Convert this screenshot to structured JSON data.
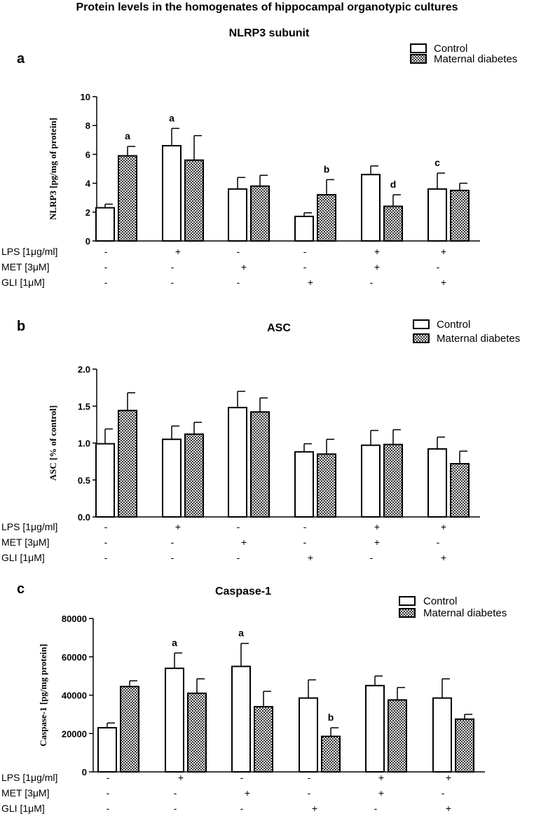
{
  "figure": {
    "title": "Protein levels in the homogenates of hippocampal organotypic cultures"
  },
  "legend": {
    "control": "Control",
    "maternal": "Maternal diabetes"
  },
  "colors": {
    "control_fill": "#ffffff",
    "maternal_fill": "#6a6a6a",
    "stroke": "#000000"
  },
  "treatments": {
    "rows": [
      {
        "label": "LPS [1μg/ml]",
        "marks": [
          "-",
          "+",
          "-",
          "-",
          "+",
          "+"
        ]
      },
      {
        "label": "MET [3μM]",
        "marks": [
          "-",
          "-",
          "+",
          "-",
          "+",
          "-"
        ]
      },
      {
        "label": "GLI [1μM]",
        "marks": [
          "-",
          "-",
          "-",
          "+",
          "-",
          "+"
        ]
      }
    ]
  },
  "chart_data": [
    {
      "type": "bar",
      "panel": "a",
      "title": "NLRP3 subunit",
      "ylabel": "NLRP3 [pg/mg of protein]",
      "ylim": [
        0,
        10
      ],
      "yticks": [
        "0",
        "2",
        "4",
        "6",
        "8",
        "10"
      ],
      "legend_position": "top-right",
      "series": [
        {
          "name": "Control",
          "values": [
            2.3,
            6.6,
            3.6,
            1.7,
            4.6,
            3.6
          ],
          "errors": [
            0.25,
            1.2,
            0.8,
            0.25,
            0.6,
            1.1
          ],
          "letters": [
            "",
            "a",
            "",
            "",
            "",
            "c"
          ]
        },
        {
          "name": "Maternal diabetes",
          "values": [
            5.9,
            5.6,
            3.8,
            3.2,
            2.4,
            3.5
          ],
          "errors": [
            0.65,
            1.7,
            0.75,
            1.05,
            0.8,
            0.5
          ],
          "letters": [
            "a",
            "",
            "",
            "b",
            "d",
            ""
          ]
        }
      ]
    },
    {
      "type": "bar",
      "panel": "b",
      "title": "ASC",
      "ylabel": "ASC [% of control]",
      "ylim": [
        0,
        2
      ],
      "yticks": [
        "0.0",
        "0.5",
        "1.0",
        "1.5",
        "2.0"
      ],
      "legend_position": "top-right",
      "series": [
        {
          "name": "Control",
          "values": [
            0.99,
            1.05,
            1.48,
            0.88,
            0.97,
            0.92
          ],
          "errors": [
            0.2,
            0.18,
            0.22,
            0.11,
            0.2,
            0.16
          ],
          "letters": [
            "",
            "",
            "",
            "",
            "",
            ""
          ]
        },
        {
          "name": "Maternal diabetes",
          "values": [
            1.44,
            1.12,
            1.42,
            0.85,
            0.98,
            0.72
          ],
          "errors": [
            0.24,
            0.16,
            0.19,
            0.2,
            0.2,
            0.17
          ],
          "letters": [
            "",
            "",
            "",
            "",
            "",
            ""
          ]
        }
      ]
    },
    {
      "type": "bar",
      "panel": "c",
      "title": "Caspase-1",
      "ylabel": "Caspase-1 [pg/mg protein]",
      "ylim": [
        0,
        80000
      ],
      "yticks": [
        "0",
        "20000",
        "40000",
        "60000",
        "80000"
      ],
      "legend_position": "top-right",
      "series": [
        {
          "name": "Control",
          "values": [
            23000,
            54000,
            55000,
            38500,
            45000,
            38500
          ],
          "errors": [
            2500,
            8000,
            12000,
            9500,
            5000,
            10000
          ],
          "letters": [
            "",
            "a",
            "a",
            "",
            "",
            ""
          ]
        },
        {
          "name": "Maternal diabetes",
          "values": [
            44500,
            41000,
            34000,
            18500,
            37500,
            27500
          ],
          "errors": [
            3000,
            7500,
            8000,
            4500,
            6500,
            2500
          ],
          "letters": [
            "",
            "",
            "",
            "b",
            "",
            ""
          ]
        }
      ]
    }
  ]
}
